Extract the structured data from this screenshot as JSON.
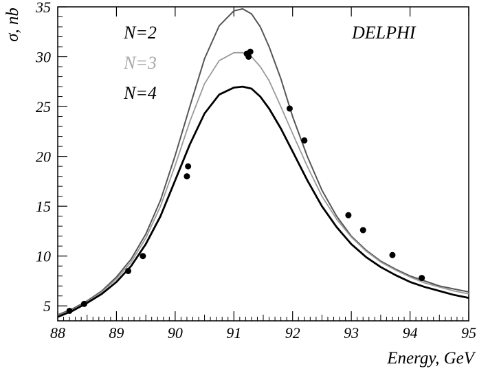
{
  "chart_data": {
    "type": "line",
    "title": "DELPHI",
    "xlabel": "Energy, GeV",
    "ylabel": "σ, nb",
    "xlim": [
      88,
      95
    ],
    "ylim": [
      3.5,
      35
    ],
    "x_ticks": [
      "88",
      "89",
      "90",
      "91",
      "92",
      "93",
      "94",
      "95"
    ],
    "y_ticks": [
      "5",
      "10",
      "15",
      "20",
      "25",
      "30",
      "35"
    ],
    "y_tick_values": [
      5,
      10,
      15,
      20,
      25,
      30,
      35
    ],
    "x_tick_values": [
      88,
      89,
      90,
      91,
      92,
      93,
      94,
      95
    ],
    "grid": false,
    "legend_position": "top-left",
    "series": [
      {
        "name": "N=2",
        "color": "#555555",
        "style": "line",
        "x": [
          88.0,
          88.25,
          88.5,
          88.75,
          89.0,
          89.25,
          89.5,
          89.75,
          90.0,
          90.25,
          90.5,
          90.75,
          91.0,
          91.15,
          91.3,
          91.45,
          91.6,
          91.8,
          92.0,
          92.25,
          92.5,
          92.75,
          93.0,
          93.25,
          93.5,
          93.75,
          94.0,
          94.25,
          94.5,
          94.75,
          95.0
        ],
        "values": [
          4.1,
          4.7,
          5.5,
          6.5,
          7.9,
          9.7,
          12.2,
          15.6,
          20.1,
          25.0,
          29.8,
          33.1,
          34.6,
          34.8,
          34.3,
          33.0,
          31.0,
          27.8,
          24.0,
          20.0,
          16.6,
          14.0,
          12.0,
          10.6,
          9.5,
          8.7,
          8.0,
          7.5,
          7.0,
          6.7,
          6.4
        ]
      },
      {
        "name": "N=3",
        "color": "#999999",
        "style": "line",
        "x": [
          88.0,
          88.25,
          88.5,
          88.75,
          89.0,
          89.25,
          89.5,
          89.75,
          90.0,
          90.25,
          90.5,
          90.75,
          91.0,
          91.15,
          91.3,
          91.45,
          91.6,
          91.8,
          92.0,
          92.25,
          92.5,
          92.75,
          93.0,
          93.25,
          93.5,
          93.75,
          94.0,
          94.25,
          94.5,
          94.75,
          95.0
        ],
        "values": [
          4.0,
          4.6,
          5.4,
          6.4,
          7.7,
          9.4,
          11.8,
          15.0,
          19.1,
          23.5,
          27.3,
          29.6,
          30.4,
          30.4,
          30.0,
          29.0,
          27.6,
          25.0,
          22.3,
          19.0,
          16.0,
          13.7,
          11.9,
          10.5,
          9.4,
          8.6,
          7.9,
          7.3,
          6.9,
          6.5,
          6.2
        ]
      },
      {
        "name": "N=4",
        "color": "#000000",
        "style": "line",
        "x": [
          88.0,
          88.25,
          88.5,
          88.75,
          89.0,
          89.25,
          89.5,
          89.75,
          90.0,
          90.25,
          90.5,
          90.75,
          91.0,
          91.15,
          91.3,
          91.45,
          91.6,
          91.8,
          92.0,
          92.25,
          92.5,
          92.75,
          93.0,
          93.25,
          93.5,
          93.75,
          94.0,
          94.25,
          94.5,
          94.75,
          95.0
        ],
        "values": [
          3.9,
          4.5,
          5.3,
          6.2,
          7.4,
          9.0,
          11.2,
          14.0,
          17.6,
          21.2,
          24.3,
          26.2,
          26.9,
          27.0,
          26.8,
          26.0,
          24.8,
          22.8,
          20.5,
          17.6,
          15.0,
          12.9,
          11.2,
          9.9,
          8.9,
          8.1,
          7.4,
          6.9,
          6.5,
          6.1,
          5.8
        ]
      },
      {
        "name": "",
        "color": "#000000",
        "style": "points",
        "x": [
          88.2,
          88.45,
          89.2,
          89.45,
          90.2,
          90.22,
          91.22,
          91.25,
          91.28,
          91.95,
          92.2,
          92.95,
          93.2,
          93.7,
          94.2
        ],
        "values": [
          4.5,
          5.2,
          8.5,
          10.0,
          18.0,
          19.0,
          30.3,
          30.0,
          30.5,
          24.8,
          21.6,
          14.1,
          12.6,
          10.1,
          7.8
        ]
      }
    ],
    "legend": [
      "N=2",
      "N=3",
      "N=4"
    ]
  }
}
